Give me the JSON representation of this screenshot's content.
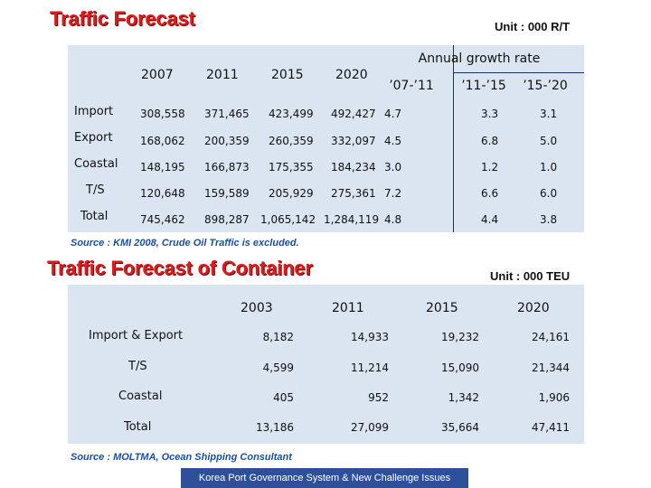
{
  "traffic_forecast": {
    "title": "Traffic Forecast",
    "unit": "Unit : 000 R/T",
    "annual_growth_label": "Annual growth rate",
    "year_headers": [
      "2007",
      "2011",
      "2015",
      "2020"
    ],
    "growth_headers": [
      "’07-’11",
      "’11-’15",
      "’15-’20"
    ],
    "rows": [
      {
        "label": "Import",
        "values": [
          "308,558",
          "371,465",
          "423,499",
          "492,427"
        ],
        "growth": [
          "4.7",
          "3.3",
          "3.1"
        ]
      },
      {
        "label": "Export",
        "values": [
          "168,062",
          "200,359",
          "260,359",
          "332,097"
        ],
        "growth": [
          "4.5",
          "6.8",
          "5.0"
        ]
      },
      {
        "label": "Coastal",
        "values": [
          "148,195",
          "166,873",
          "175,355",
          "184,234"
        ],
        "growth": [
          "3.0",
          "1.2",
          "1.0"
        ]
      },
      {
        "label": "T/S",
        "values": [
          "120,648",
          "159,589",
          "205,929",
          "275,361"
        ],
        "growth": [
          "7.2",
          "6.6",
          "6.0"
        ]
      },
      {
        "label": "Total",
        "values": [
          "745,462",
          "898,287",
          "1,065,142",
          "1,284,119"
        ],
        "growth": [
          "4.8",
          "4.4",
          "3.8"
        ]
      }
    ],
    "source": "Source : KMI 2008, Crude Oil Traffic is excluded."
  },
  "container_forecast": {
    "title": "Traffic Forecast of Container",
    "unit": "Unit : 000 TEU",
    "year_headers": [
      "2003",
      "2011",
      "2015",
      "2020"
    ],
    "rows": [
      {
        "label": "Import & Export",
        "values": [
          "8,182",
          "14,933",
          "19,232",
          "24,161"
        ]
      },
      {
        "label": "T/S",
        "values": [
          "4,599",
          "11,214",
          "15,090",
          "21,344"
        ]
      },
      {
        "label": "Coastal",
        "values": [
          "405",
          "952",
          "1,342",
          "1,906"
        ]
      },
      {
        "label": "Total",
        "values": [
          "13,186",
          "27,099",
          "35,664",
          "47,411"
        ]
      }
    ],
    "source": "Source : MOLTMA, Ocean Shipping Consultant"
  },
  "footer": "Korea Port Governance System & New Challenge Issues"
}
